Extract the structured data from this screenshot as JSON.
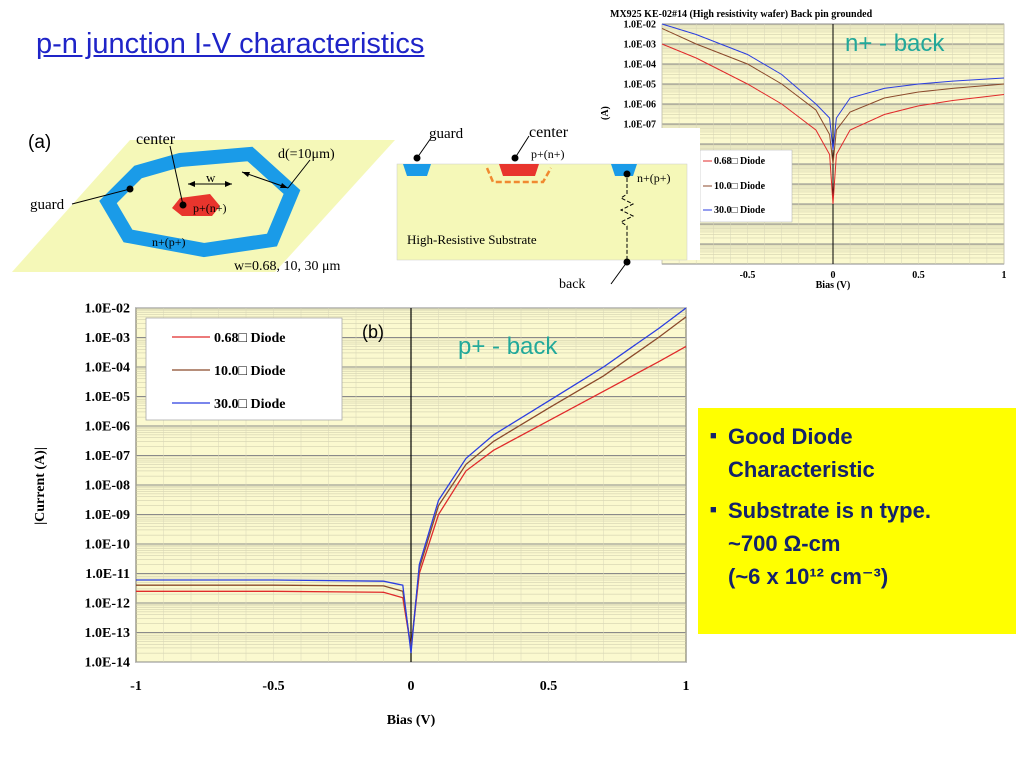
{
  "title": "p-n junction I-V characteristics",
  "diagram_a": {
    "panel_label": "(a)",
    "labels": {
      "center": "center",
      "guard": "guard",
      "d": "d(=10μm)",
      "w": "w",
      "inner_region": "p+(n+)",
      "outer_ring": "n+(p+)",
      "widths": "w=0.68, 10, 30 μm"
    }
  },
  "cross_section": {
    "labels": {
      "guard": "guard",
      "center": "center",
      "inner_region": "p+(n+)",
      "outer_region": "n+(p+)",
      "substrate": "High-Resistive Substrate",
      "back": "back"
    }
  },
  "callouts": {
    "n_back": "n+ - back",
    "p_back": "p+ - back"
  },
  "summary": {
    "items": [
      {
        "line1": "Good Diode",
        "line2": "Characteristic",
        "line3": ""
      },
      {
        "line1": "Substrate is n type.",
        "line2": "~700 Ω-cm",
        "line3": "(~6 x 10¹² cm⁻³)"
      }
    ]
  },
  "colors": {
    "title": "#1f24c8",
    "callout": "#22a89a",
    "summary_bg": "#ffff00",
    "summary_text": "#13226b",
    "plot_bg": "#fbf9cf",
    "diagram_bg": "#f5f8b8",
    "ring": "#1a9be8",
    "center": "#e8352d",
    "series_068": "#e02b2b",
    "series_10": "#8b4a2b",
    "series_30": "#2b3ee0"
  },
  "chart_data": [
    {
      "type": "line",
      "panel_label": "(b)",
      "title": "",
      "xlabel": "Bias (V)",
      "ylabel": "|Current (A)|",
      "log_y": true,
      "xlim": [
        -1,
        1
      ],
      "ylim": [
        1e-14,
        0.01
      ],
      "x_ticks": [
        "-1",
        "-0.5",
        "0",
        "0.5",
        "1"
      ],
      "y_ticks": [
        "1.0E-02",
        "1.0E-03",
        "1.0E-04",
        "1.0E-05",
        "1.0E-06",
        "1.0E-07",
        "1.0E-08",
        "1.0E-09",
        "1.0E-10",
        "1.0E-11",
        "1.0E-12",
        "1.0E-13",
        "1.0E-14"
      ],
      "grid": true,
      "legend_position": "top-left",
      "series": [
        {
          "name": "0.68□ Diode",
          "color": "#e02b2b",
          "x": [
            -1,
            -0.5,
            -0.1,
            -0.03,
            0,
            0.03,
            0.1,
            0.2,
            0.3,
            0.5,
            0.7,
            0.9,
            1.0
          ],
          "y": [
            2.5e-12,
            2.5e-12,
            2.3e-12,
            1.5e-12,
            3e-14,
            1e-11,
            1e-09,
            3e-08,
            1.5e-07,
            1.5e-06,
            1.5e-05,
            0.00015,
            0.0005
          ]
        },
        {
          "name": "10.0□ Diode",
          "color": "#8b4a2b",
          "x": [
            -1,
            -0.5,
            -0.1,
            -0.03,
            0,
            0.03,
            0.1,
            0.2,
            0.3,
            0.5,
            0.7,
            0.9,
            1.0
          ],
          "y": [
            4e-12,
            4e-12,
            3.8e-12,
            2.5e-12,
            3e-14,
            1.5e-11,
            2e-09,
            5e-08,
            3e-07,
            4e-06,
            5e-05,
            0.001,
            0.005
          ]
        },
        {
          "name": "30.0□ Diode",
          "color": "#2b3ee0",
          "x": [
            -1,
            -0.5,
            -0.1,
            -0.03,
            0,
            0.03,
            0.1,
            0.2,
            0.3,
            0.5,
            0.7,
            0.9,
            1.0
          ],
          "y": [
            6e-12,
            6e-12,
            5.5e-12,
            4e-12,
            2e-14,
            2e-11,
            3e-09,
            8e-08,
            5e-07,
            7e-06,
            0.0001,
            0.002,
            0.01
          ]
        }
      ]
    },
    {
      "type": "line",
      "title": "MX925 KE-02#14 (High resistivity wafer) Back pin grounded",
      "xlabel": "Bias (V)",
      "ylabel": "(A)",
      "log_y": true,
      "xlim": [
        -1,
        1
      ],
      "ylim": [
        1e-14,
        0.01
      ],
      "x_ticks": [
        "-0.5",
        "0",
        "0.5",
        "1"
      ],
      "y_ticks": [
        "1.0E-02",
        "1.0E-03",
        "1.0E-04",
        "1.0E-05",
        "1.0E-06",
        "1.0E-07"
      ],
      "grid": true,
      "legend_position": "bottom-left",
      "series": [
        {
          "name": "0.68□ Diode",
          "color": "#e02b2b",
          "x": [
            -1,
            -0.8,
            -0.5,
            -0.3,
            -0.1,
            -0.02,
            0,
            0.02,
            0.1,
            0.3,
            0.5,
            0.7,
            1.0
          ],
          "y": [
            0.001,
            0.0002,
            1e-05,
            1e-06,
            5e-08,
            3e-09,
            1e-11,
            3e-09,
            5e-08,
            3e-07,
            8e-07,
            1.5e-06,
            3e-06
          ]
        },
        {
          "name": "10.0□ Diode",
          "color": "#8b4a2b",
          "x": [
            -1,
            -0.8,
            -0.5,
            -0.3,
            -0.1,
            -0.02,
            0,
            0.02,
            0.1,
            0.3,
            0.5,
            0.7,
            1.0
          ],
          "y": [
            0.006,
            0.001,
            0.0001,
            1e-05,
            5e-07,
            3e-08,
            1e-09,
            5e-08,
            4e-07,
            2e-06,
            4e-06,
            6e-06,
            1e-05
          ]
        },
        {
          "name": "30.0□ Diode",
          "color": "#2b3ee0",
          "x": [
            -1,
            -0.8,
            -0.5,
            -0.3,
            -0.1,
            -0.02,
            0,
            0.02,
            0.1,
            0.3,
            0.5,
            0.7,
            1.0
          ],
          "y": [
            0.01,
            0.003,
            0.0003,
            3e-05,
            1e-06,
            2e-07,
            5e-09,
            2e-07,
            2e-06,
            6e-06,
            1e-05,
            1.4e-05,
            2e-05
          ]
        }
      ]
    }
  ]
}
